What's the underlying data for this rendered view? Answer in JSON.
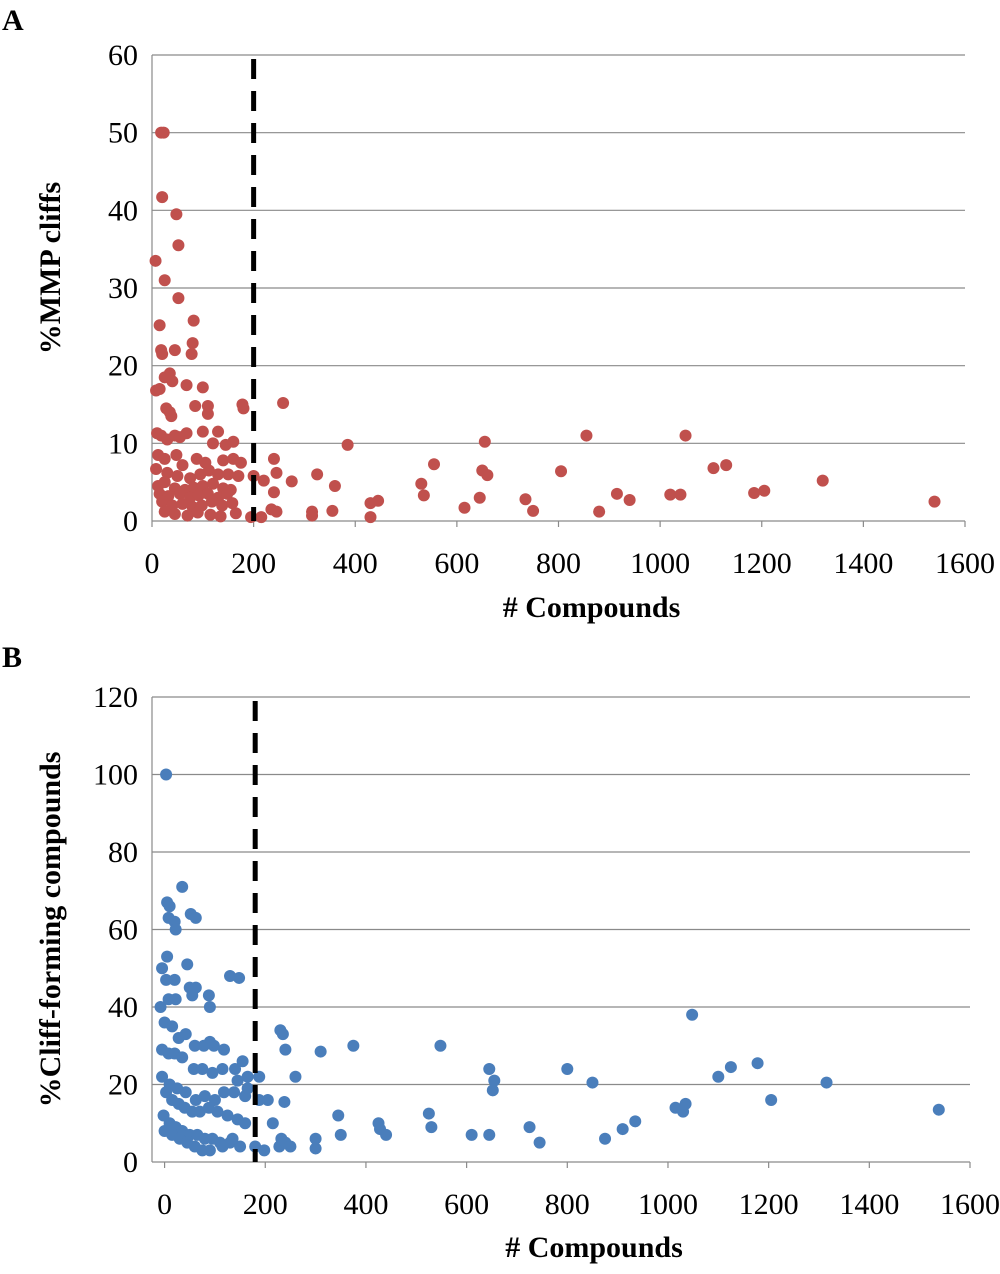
{
  "chart_data": [
    {
      "panel_label": "A",
      "type": "scatter",
      "xlabel": "# Compounds",
      "ylabel": "%MMP cliffs",
      "xlim": [
        0,
        1600
      ],
      "ylim": [
        0,
        60
      ],
      "x_ticks": [
        "0",
        "200",
        "400",
        "600",
        "800",
        "1000",
        "1200",
        "1400",
        "1600"
      ],
      "y_ticks": [
        "0",
        "10",
        "20",
        "30",
        "40",
        "50",
        "60"
      ],
      "grid": "horizontal",
      "color": "#c0504d",
      "threshold_line": {
        "x": 200,
        "style": "dashed"
      },
      "points": [
        [
          7,
          33.5
        ],
        [
          18,
          50
        ],
        [
          23,
          50
        ],
        [
          20,
          41.7
        ],
        [
          48,
          39.5
        ],
        [
          52,
          35.5
        ],
        [
          25,
          31
        ],
        [
          52,
          28.7
        ],
        [
          15,
          25.2
        ],
        [
          82,
          25.8
        ],
        [
          18,
          22
        ],
        [
          20,
          21.5
        ],
        [
          45,
          22
        ],
        [
          80,
          22.9
        ],
        [
          78,
          21.5
        ],
        [
          35,
          19
        ],
        [
          25,
          18.5
        ],
        [
          40,
          18
        ],
        [
          8,
          16.8
        ],
        [
          15,
          17
        ],
        [
          68,
          17.5
        ],
        [
          100,
          17.2
        ],
        [
          28,
          14.5
        ],
        [
          35,
          14
        ],
        [
          38,
          13.5
        ],
        [
          85,
          14.8
        ],
        [
          110,
          14.8
        ],
        [
          110,
          13.8
        ],
        [
          178,
          15
        ],
        [
          180,
          14.5
        ],
        [
          258,
          15.2
        ],
        [
          10,
          11.3
        ],
        [
          18,
          11
        ],
        [
          30,
          10.5
        ],
        [
          45,
          11
        ],
        [
          55,
          10.8
        ],
        [
          68,
          11.3
        ],
        [
          100,
          11.5
        ],
        [
          120,
          10
        ],
        [
          130,
          11.5
        ],
        [
          160,
          10.2
        ],
        [
          145,
          9.8
        ],
        [
          385,
          9.8
        ],
        [
          655,
          10.2
        ],
        [
          855,
          11
        ],
        [
          1050,
          11
        ],
        [
          12,
          8.5
        ],
        [
          25,
          8
        ],
        [
          48,
          8.5
        ],
        [
          60,
          7.2
        ],
        [
          88,
          8
        ],
        [
          105,
          7.5
        ],
        [
          140,
          7.8
        ],
        [
          160,
          8
        ],
        [
          175,
          7.5
        ],
        [
          240,
          8
        ],
        [
          555,
          7.3
        ],
        [
          1130,
          7.2
        ],
        [
          1105,
          6.8
        ],
        [
          650,
          6.5
        ],
        [
          805,
          6.4
        ],
        [
          8,
          6.7
        ],
        [
          30,
          6.2
        ],
        [
          50,
          5.8
        ],
        [
          75,
          5.5
        ],
        [
          95,
          6
        ],
        [
          112,
          6.5
        ],
        [
          130,
          6
        ],
        [
          150,
          6
        ],
        [
          170,
          5.8
        ],
        [
          200,
          5.8
        ],
        [
          220,
          5.2
        ],
        [
          245,
          6.2
        ],
        [
          325,
          6
        ],
        [
          660,
          5.9
        ],
        [
          12,
          4.5
        ],
        [
          25,
          5
        ],
        [
          45,
          4.2
        ],
        [
          65,
          4
        ],
        [
          82,
          4.3
        ],
        [
          100,
          4.5
        ],
        [
          120,
          4.8
        ],
        [
          140,
          4.2
        ],
        [
          155,
          4
        ],
        [
          275,
          5.1
        ],
        [
          530,
          4.8
        ],
        [
          1320,
          5.2
        ],
        [
          15,
          3.5
        ],
        [
          32,
          3.2
        ],
        [
          55,
          3.5
        ],
        [
          75,
          3
        ],
        [
          92,
          3.3
        ],
        [
          110,
          3.5
        ],
        [
          130,
          3
        ],
        [
          148,
          3.5
        ],
        [
          240,
          3.7
        ],
        [
          360,
          4.5
        ],
        [
          535,
          3.3
        ],
        [
          645,
          3
        ],
        [
          735,
          2.8
        ],
        [
          915,
          3.5
        ],
        [
          940,
          2.7
        ],
        [
          1020,
          3.4
        ],
        [
          1040,
          3.4
        ],
        [
          1185,
          3.6
        ],
        [
          1205,
          3.9
        ],
        [
          1540,
          2.5
        ],
        [
          20,
          2.5
        ],
        [
          40,
          2
        ],
        [
          60,
          2.2
        ],
        [
          80,
          1.8
        ],
        [
          98,
          2
        ],
        [
          118,
          2.5
        ],
        [
          138,
          2
        ],
        [
          158,
          2.3
        ],
        [
          235,
          1.5
        ],
        [
          445,
          2.6
        ],
        [
          430,
          2.3
        ],
        [
          615,
          1.7
        ],
        [
          750,
          1.3
        ],
        [
          880,
          1.2
        ],
        [
          25,
          1.2
        ],
        [
          45,
          0.9
        ],
        [
          70,
          0.7
        ],
        [
          90,
          1.1
        ],
        [
          115,
          0.8
        ],
        [
          135,
          0.6
        ],
        [
          165,
          1
        ],
        [
          195,
          0.5
        ],
        [
          215,
          0.5
        ],
        [
          245,
          1.2
        ],
        [
          315,
          1.2
        ],
        [
          315,
          0.7
        ],
        [
          355,
          1.3
        ],
        [
          430,
          0.5
        ]
      ]
    },
    {
      "panel_label": "B",
      "type": "scatter",
      "xlabel": "# Compounds",
      "ylabel": "%Cliff-forming compounds",
      "xlim": [
        -25,
        1600
      ],
      "ylim": [
        0,
        120
      ],
      "x_ticks": [
        "0",
        "200",
        "400",
        "600",
        "800",
        "1000",
        "1200",
        "1400",
        "1600"
      ],
      "y_ticks": [
        "0",
        "20",
        "40",
        "60",
        "80",
        "100",
        "120"
      ],
      "grid": "horizontal",
      "color": "#4a7ebb",
      "threshold_line": {
        "x": 180,
        "style": "dashed"
      },
      "points": [
        [
          3,
          100
        ],
        [
          35,
          71
        ],
        [
          5,
          67
        ],
        [
          10,
          66
        ],
        [
          8,
          63
        ],
        [
          20,
          62
        ],
        [
          22,
          60
        ],
        [
          52,
          64
        ],
        [
          62,
          63
        ],
        [
          -5,
          50
        ],
        [
          5,
          53
        ],
        [
          3,
          47
        ],
        [
          20,
          47
        ],
        [
          45,
          51
        ],
        [
          50,
          45
        ],
        [
          62,
          45
        ],
        [
          55,
          43
        ],
        [
          88,
          43
        ],
        [
          -8,
          40
        ],
        [
          8,
          42
        ],
        [
          22,
          42
        ],
        [
          90,
          40
        ],
        [
          148,
          47.5
        ],
        [
          130,
          48
        ],
        [
          0,
          36
        ],
        [
          15,
          35
        ],
        [
          28,
          32
        ],
        [
          42,
          33
        ],
        [
          60,
          30
        ],
        [
          78,
          30
        ],
        [
          98,
          30
        ],
        [
          118,
          29
        ],
        [
          90,
          31
        ],
        [
          -5,
          29
        ],
        [
          8,
          28
        ],
        [
          20,
          28
        ],
        [
          35,
          27
        ],
        [
          58,
          24
        ],
        [
          75,
          24
        ],
        [
          95,
          23
        ],
        [
          115,
          24
        ],
        [
          140,
          24
        ],
        [
          155,
          26
        ],
        [
          165,
          22
        ],
        [
          145,
          21
        ],
        [
          165,
          19
        ],
        [
          118,
          18
        ],
        [
          138,
          18
        ],
        [
          160,
          17
        ],
        [
          100,
          16
        ],
        [
          80,
          17
        ],
        [
          62,
          16
        ],
        [
          42,
          18
        ],
        [
          25,
          19
        ],
        [
          10,
          20
        ],
        [
          -5,
          22
        ],
        [
          3,
          18
        ],
        [
          15,
          16
        ],
        [
          28,
          15
        ],
        [
          40,
          14
        ],
        [
          55,
          13
        ],
        [
          70,
          13
        ],
        [
          88,
          14
        ],
        [
          105,
          13
        ],
        [
          125,
          12
        ],
        [
          145,
          11
        ],
        [
          160,
          10
        ],
        [
          -2,
          12
        ],
        [
          10,
          10
        ],
        [
          22,
          9
        ],
        [
          35,
          8
        ],
        [
          50,
          7
        ],
        [
          65,
          7
        ],
        [
          80,
          6
        ],
        [
          95,
          6
        ],
        [
          110,
          5
        ],
        [
          130,
          5
        ],
        [
          150,
          4
        ],
        [
          0,
          8
        ],
        [
          15,
          7
        ],
        [
          30,
          6
        ],
        [
          45,
          5
        ],
        [
          60,
          4
        ],
        [
          75,
          3
        ],
        [
          90,
          3
        ],
        [
          115,
          4
        ],
        [
          135,
          6
        ],
        [
          188,
          22
        ],
        [
          188,
          16
        ],
        [
          205,
          16
        ],
        [
          215,
          10
        ],
        [
          230,
          34
        ],
        [
          235,
          33
        ],
        [
          240,
          29
        ],
        [
          260,
          22
        ],
        [
          238,
          15.5
        ],
        [
          180,
          4
        ],
        [
          198,
          3
        ],
        [
          228,
          4
        ],
        [
          250,
          4
        ],
        [
          240,
          5
        ],
        [
          232,
          6
        ],
        [
          300,
          3.5
        ],
        [
          300,
          6
        ],
        [
          310,
          28.5
        ],
        [
          345,
          12
        ],
        [
          350,
          7
        ],
        [
          375,
          30
        ],
        [
          425,
          10
        ],
        [
          428,
          8.5
        ],
        [
          440,
          7
        ],
        [
          525,
          12.5
        ],
        [
          530,
          9
        ],
        [
          548,
          30
        ],
        [
          610,
          7
        ],
        [
          645,
          7
        ],
        [
          645,
          24
        ],
        [
          652,
          18.5
        ],
        [
          655,
          21
        ],
        [
          725,
          9
        ],
        [
          745,
          5
        ],
        [
          800,
          24
        ],
        [
          850,
          20.5
        ],
        [
          875,
          6
        ],
        [
          910,
          8.5
        ],
        [
          935,
          10.5
        ],
        [
          1015,
          14
        ],
        [
          1030,
          13
        ],
        [
          1035,
          15
        ],
        [
          1048,
          38
        ],
        [
          1100,
          22
        ],
        [
          1125,
          24.5
        ],
        [
          1178,
          25.5
        ],
        [
          1205,
          16
        ],
        [
          1315,
          20.5
        ],
        [
          1538,
          13.5
        ]
      ]
    }
  ]
}
